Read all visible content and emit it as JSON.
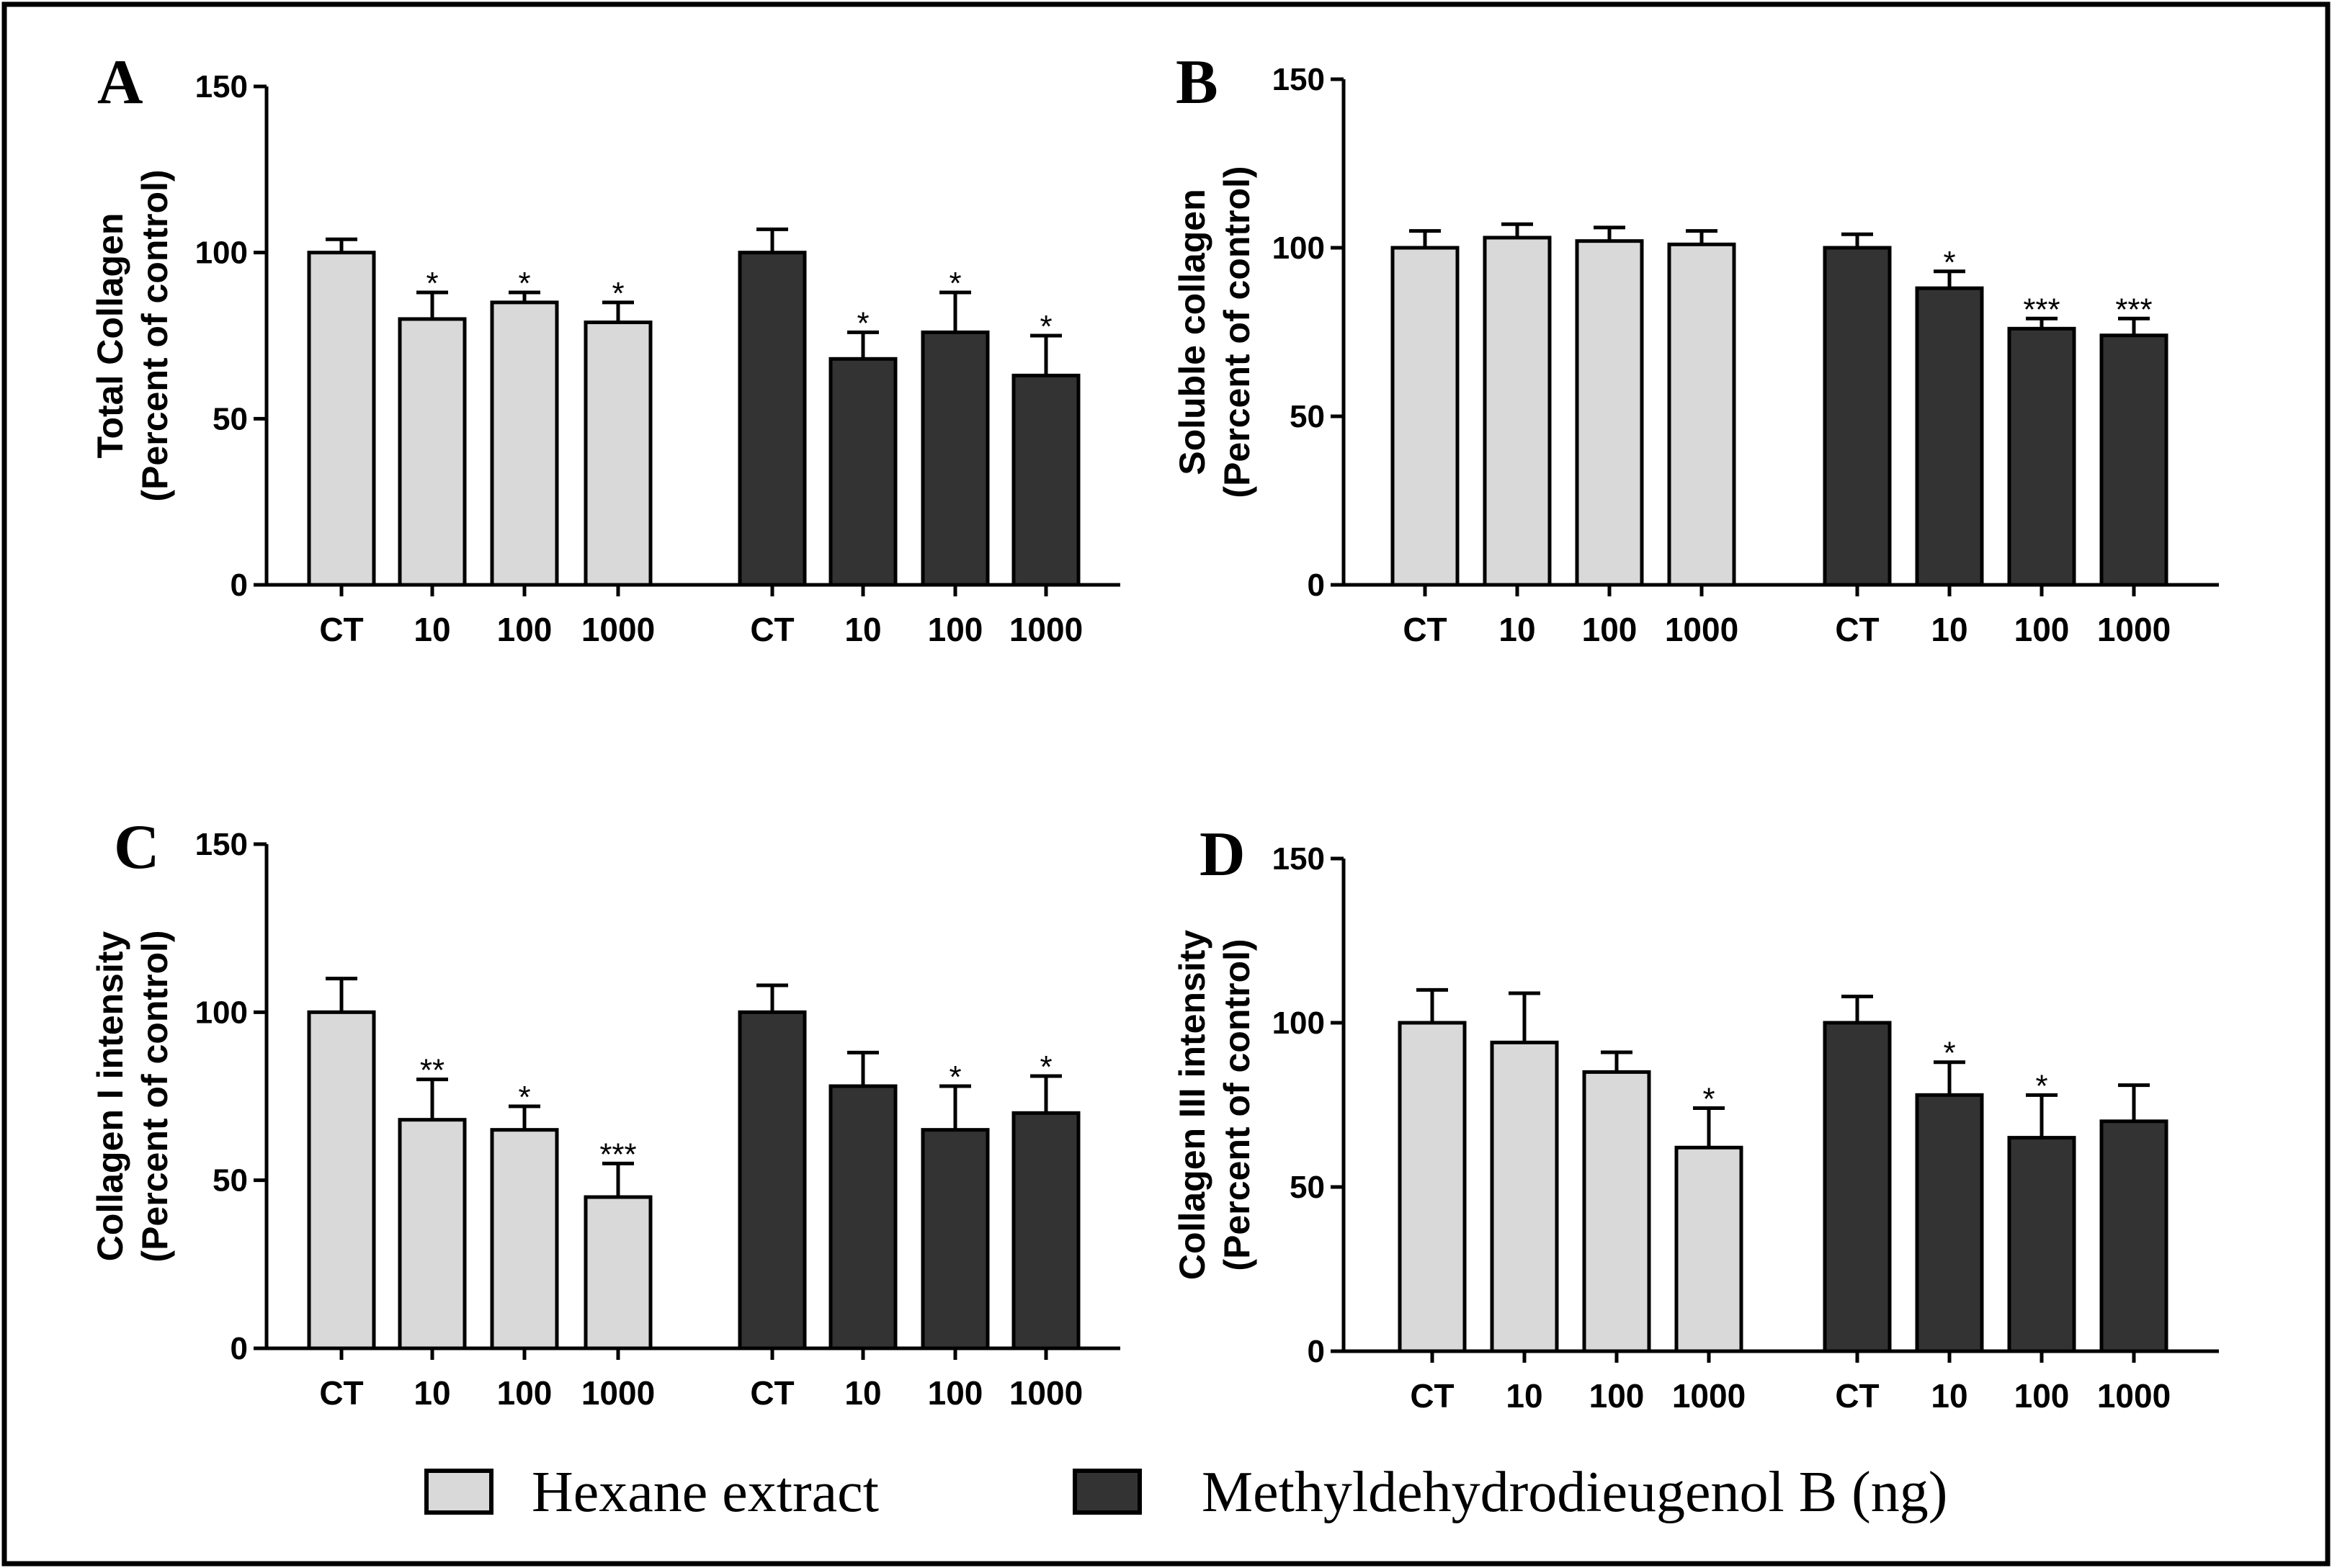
{
  "chart_data": [
    {
      "type": "bar",
      "panel": "A",
      "ylabel_line1": "Total Collagen",
      "ylabel_line2": "(Percent of control)",
      "ylim": [
        0,
        150
      ],
      "yticks": [
        0,
        50,
        100,
        150
      ],
      "categories": [
        "CT",
        "10",
        "100",
        "1000"
      ],
      "series": [
        {
          "name": "Hexane extract",
          "values": [
            100,
            80,
            85,
            79
          ],
          "errors": [
            4,
            8,
            3,
            6
          ],
          "sig": [
            "",
            "*",
            "*",
            "*"
          ]
        },
        {
          "name": "Methyldehydrodieugenol B (ng)",
          "values": [
            100,
            68,
            76,
            63
          ],
          "errors": [
            7,
            8,
            12,
            12
          ],
          "sig": [
            "",
            "*",
            "*",
            "*"
          ]
        }
      ]
    },
    {
      "type": "bar",
      "panel": "B",
      "ylabel_line1": "Soluble collagen",
      "ylabel_line2": "(Percent of control)",
      "ylim": [
        0,
        150
      ],
      "yticks": [
        0,
        50,
        100,
        150
      ],
      "categories": [
        "CT",
        "10",
        "100",
        "1000"
      ],
      "series": [
        {
          "name": "Hexane extract",
          "values": [
            100,
            103,
            102,
            101
          ],
          "errors": [
            5,
            4,
            4,
            4
          ],
          "sig": [
            "",
            "",
            "",
            ""
          ]
        },
        {
          "name": "Methyldehydrodieugenol B (ng)",
          "values": [
            100,
            88,
            76,
            74
          ],
          "errors": [
            4,
            5,
            3,
            5
          ],
          "sig": [
            "",
            "*",
            "***",
            "***"
          ]
        }
      ]
    },
    {
      "type": "bar",
      "panel": "C",
      "ylabel_line1": "Collagen I intensity",
      "ylabel_line2": "(Percent of control)",
      "ylim": [
        0,
        150
      ],
      "yticks": [
        0,
        50,
        100,
        150
      ],
      "categories": [
        "CT",
        "10",
        "100",
        "1000"
      ],
      "series": [
        {
          "name": "Hexane extract",
          "values": [
            100,
            68,
            65,
            45
          ],
          "errors": [
            10,
            12,
            7,
            10
          ],
          "sig": [
            "",
            "**",
            "*",
            "***"
          ]
        },
        {
          "name": "Methyldehydrodieugenol B (ng)",
          "values": [
            100,
            78,
            65,
            70
          ],
          "errors": [
            8,
            10,
            13,
            11
          ],
          "sig": [
            "",
            "",
            "*",
            "*"
          ]
        }
      ]
    },
    {
      "type": "bar",
      "panel": "D",
      "ylabel_line1": "Collagen III intensity",
      "ylabel_line2": "(Percent of control)",
      "ylim": [
        0,
        150
      ],
      "yticks": [
        0,
        50,
        100,
        150
      ],
      "categories": [
        "CT",
        "10",
        "100",
        "1000"
      ],
      "series": [
        {
          "name": "Hexane extract",
          "values": [
            100,
            94,
            85,
            62
          ],
          "errors": [
            10,
            15,
            6,
            12
          ],
          "sig": [
            "",
            "",
            "",
            "*"
          ]
        },
        {
          "name": "Methyldehydrodieugenol B (ng)",
          "values": [
            100,
            78,
            65,
            70
          ],
          "errors": [
            8,
            10,
            13,
            11
          ],
          "sig": [
            "",
            "*",
            "*",
            ""
          ]
        }
      ]
    }
  ],
  "legend": {
    "items": [
      {
        "label": "Hexane extract",
        "color": "#d9d9d9"
      },
      {
        "label": "Methyldehydrodieugenol B (ng)",
        "color": "#333333"
      }
    ]
  },
  "colors": {
    "hexane": "#d9d9d9",
    "mdb": "#333333"
  }
}
